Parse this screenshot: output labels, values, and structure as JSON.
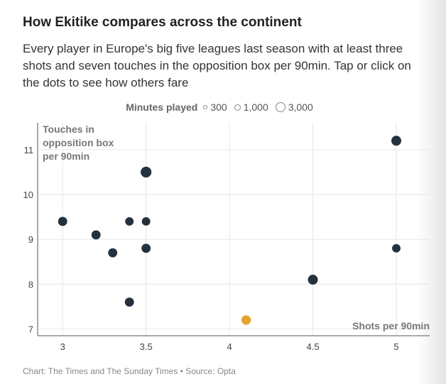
{
  "title": "How Ekitike compares across the continent",
  "subtitle": "Every player in Europe's big five leagues last season with at least three shots and seven touches in the opposition box per 90min. Tap or click on the dots to see how others fare",
  "legend": {
    "title": "Minutes played",
    "items": [
      {
        "label": "300",
        "minutes": 300
      },
      {
        "label": "1,000",
        "minutes": 1000
      },
      {
        "label": "3,000",
        "minutes": 3000
      }
    ]
  },
  "footer": "Chart: The Times and The Sunday Times • Source: Opta",
  "colors": {
    "dot": "#24323f",
    "highlight": "#e0a52a",
    "grid": "#e6e6e6",
    "axis": "#555555"
  },
  "chart_data": {
    "type": "scatter",
    "title": "How Ekitike compares across the continent",
    "xlabel": "Shots per 90min",
    "ylabel_lines": [
      "Touches in",
      "opposition box",
      "per 90min"
    ],
    "xlim": [
      2.85,
      5.2
    ],
    "ylim": [
      6.85,
      11.6
    ],
    "xticks": [
      3,
      3.5,
      4,
      4.5,
      5
    ],
    "xtick_labels": [
      "3",
      "3.5",
      "4",
      "4.5",
      "5"
    ],
    "yticks": [
      7,
      8,
      9,
      10,
      11
    ],
    "ytick_labels": [
      "7",
      "8",
      "9",
      "10",
      "11"
    ],
    "grid": true,
    "size_encoding": "minutes played",
    "points": [
      {
        "x": 3.0,
        "y": 9.4,
        "minutes": 1800
      },
      {
        "x": 3.2,
        "y": 9.1,
        "minutes": 1800
      },
      {
        "x": 3.3,
        "y": 8.7,
        "minutes": 1800
      },
      {
        "x": 3.4,
        "y": 9.4,
        "minutes": 1400
      },
      {
        "x": 3.4,
        "y": 7.6,
        "minutes": 1800
      },
      {
        "x": 3.5,
        "y": 10.5,
        "minutes": 2900
      },
      {
        "x": 3.5,
        "y": 9.4,
        "minutes": 1400
      },
      {
        "x": 3.5,
        "y": 8.8,
        "minutes": 1800
      },
      {
        "x": 4.1,
        "y": 7.2,
        "minutes": 2000,
        "highlight": true
      },
      {
        "x": 4.5,
        "y": 8.1,
        "minutes": 2300
      },
      {
        "x": 5.0,
        "y": 11.2,
        "minutes": 2300
      },
      {
        "x": 5.0,
        "y": 8.8,
        "minutes": 1400
      }
    ]
  }
}
